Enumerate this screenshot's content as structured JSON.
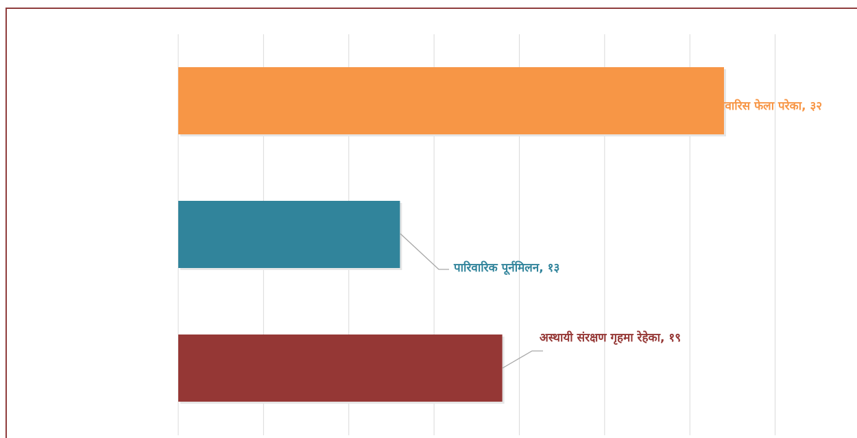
{
  "chart_data": {
    "type": "bar",
    "orientation": "horizontal",
    "values": [
      32,
      13,
      19
    ],
    "value_labels": [
      "वेवारिस फेला परेका, ३२",
      "पारिवारिक पूर्नमिलन, १३",
      "अस्थायी संरक्षण गृहमा रेहेका, १९"
    ],
    "colors": [
      "#f79646",
      "#31849b",
      "#953735"
    ],
    "xlim": [
      0,
      35
    ],
    "xticks": [
      0,
      5,
      10,
      15,
      20,
      25,
      30,
      35
    ],
    "grid": true
  }
}
